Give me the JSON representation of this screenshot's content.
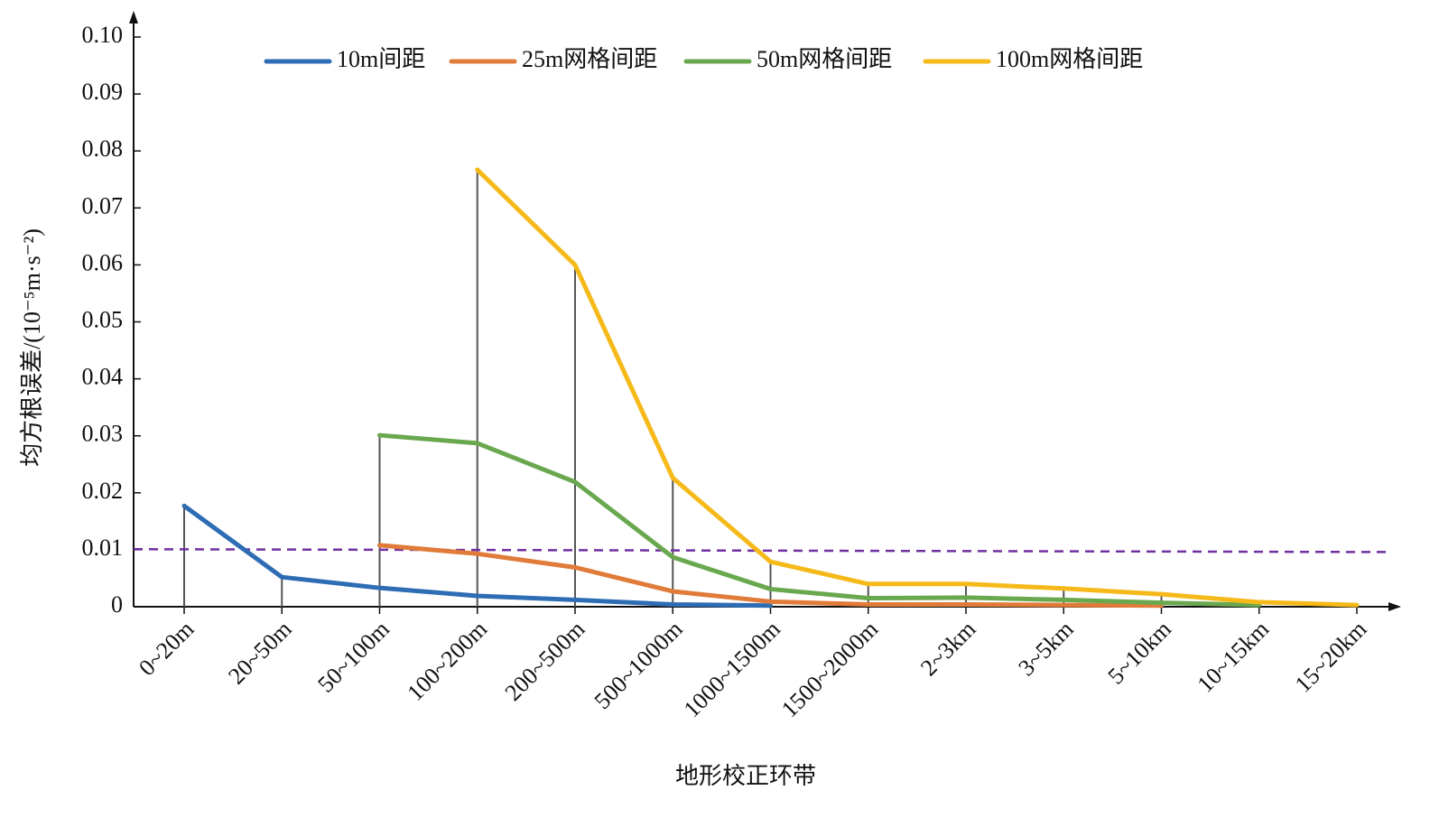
{
  "chart_data": {
    "type": "line",
    "xlabel": "地形校正环带",
    "ylabel": "均方根误差/(10⁻⁵m·s⁻²)",
    "categories": [
      "0~20m",
      "20~50m",
      "50~100m",
      "100~200m",
      "200~500m",
      "500~1000m",
      "1000~1500m",
      "1500~2000m",
      "2~3km",
      "3~5km",
      "5~10km",
      "10~15km",
      "15~20km"
    ],
    "series": [
      {
        "name": "10m间距",
        "color": "#2e6db4",
        "values": [
          0.0177,
          0.0052,
          0.0033,
          0.0019,
          0.0012,
          0.0004,
          0.0002,
          null,
          null,
          null,
          null,
          null,
          null
        ]
      },
      {
        "name": "25m网格间距",
        "color": "#e07b39",
        "values": [
          null,
          null,
          0.0108,
          0.0093,
          0.0069,
          0.0027,
          0.0009,
          0.0004,
          0.0004,
          0.0003,
          0.0002,
          null,
          null
        ]
      },
      {
        "name": "50m网格间距",
        "color": "#6aa84f",
        "values": [
          null,
          null,
          0.0301,
          0.0287,
          0.0219,
          0.0087,
          0.0031,
          0.0015,
          0.0016,
          0.0012,
          0.0007,
          0.0003,
          null
        ]
      },
      {
        "name": "100m网格间距",
        "color": "#f5b91a",
        "values": [
          null,
          null,
          null,
          0.0767,
          0.06,
          0.0226,
          0.0079,
          0.004,
          0.004,
          0.0032,
          0.0022,
          0.0008,
          0.0003
        ]
      }
    ],
    "reference_line": {
      "values": [
        0.0101,
        0.0096
      ],
      "color": "#7030a0"
    },
    "ylim": [
      0,
      0.1
    ],
    "yticks": [
      0,
      0.01,
      0.02,
      0.03,
      0.04,
      0.05,
      0.06,
      0.07,
      0.08,
      0.09,
      {
        "value": 0.1,
        "label": "0.10"
      }
    ],
    "legend": "top"
  }
}
